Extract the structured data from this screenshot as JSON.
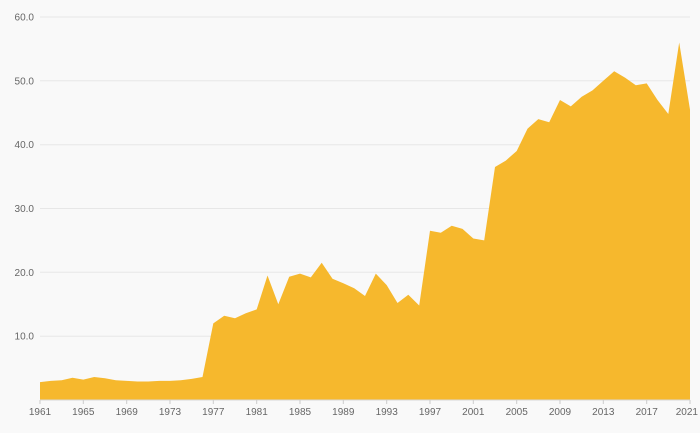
{
  "chart_data": {
    "type": "area",
    "title": "",
    "xlabel": "",
    "ylabel": "",
    "x": [
      1961,
      1962,
      1963,
      1964,
      1965,
      1966,
      1967,
      1968,
      1969,
      1970,
      1971,
      1972,
      1973,
      1974,
      1975,
      1976,
      1977,
      1978,
      1979,
      1980,
      1981,
      1982,
      1983,
      1984,
      1985,
      1986,
      1987,
      1988,
      1989,
      1990,
      1991,
      1992,
      1993,
      1994,
      1995,
      1996,
      1997,
      1998,
      1999,
      2000,
      2001,
      2002,
      2003,
      2004,
      2005,
      2006,
      2007,
      2008,
      2009,
      2010,
      2011,
      2012,
      2013,
      2014,
      2015,
      2016,
      2017,
      2018,
      2019,
      2020,
      2021
    ],
    "values": [
      2.8,
      3.0,
      3.1,
      3.5,
      3.2,
      3.6,
      3.4,
      3.1,
      3.0,
      2.9,
      2.9,
      3.0,
      3.0,
      3.1,
      3.3,
      3.6,
      12.0,
      13.2,
      12.8,
      13.6,
      14.2,
      19.5,
      15.0,
      19.3,
      19.8,
      19.2,
      21.5,
      19.0,
      18.3,
      17.5,
      16.3,
      19.8,
      18.0,
      15.2,
      16.5,
      14.8,
      26.5,
      26.2,
      27.3,
      26.8,
      25.3,
      25.0,
      36.5,
      37.5,
      39.0,
      42.5,
      44.0,
      43.5,
      47.0,
      46.0,
      47.5,
      48.5,
      50.0,
      51.5,
      50.5,
      49.3,
      49.6,
      47.0,
      44.8,
      56.0,
      45.5
    ],
    "ylim": [
      0,
      60
    ],
    "yticks": [
      10,
      20,
      30,
      40,
      50,
      60
    ],
    "ytick_labels": [
      "10.0",
      "20.0",
      "30.0",
      "40.0",
      "50.0",
      "60.0"
    ],
    "xticks": [
      1961,
      1965,
      1969,
      1973,
      1977,
      1981,
      1985,
      1989,
      1993,
      1997,
      2001,
      2005,
      2009,
      2013,
      2017,
      2021
    ],
    "grid": true,
    "legend": "none",
    "colors": {
      "area": "#F6B82D",
      "grid": "#e7e7e7",
      "axis": "#d6d6d6",
      "tick": "#cccccc",
      "text": "#666666",
      "background": "#f9f9f9"
    }
  }
}
